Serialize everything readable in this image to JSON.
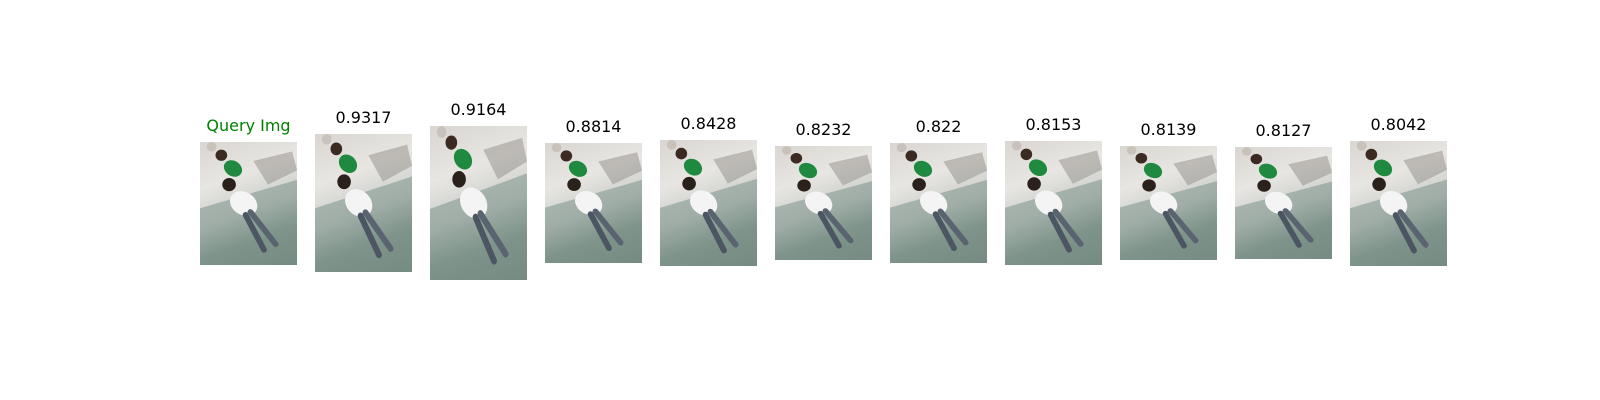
{
  "gallery": {
    "query_label": "Query Img",
    "query_color": "#008000",
    "results": [
      {
        "score": "0.9317"
      },
      {
        "score": "0.9164"
      },
      {
        "score": "0.8814"
      },
      {
        "score": "0.8428"
      },
      {
        "score": "0.8232"
      },
      {
        "score": "0.822"
      },
      {
        "score": "0.8153"
      },
      {
        "score": "0.8139"
      },
      {
        "score": "0.8127"
      },
      {
        "score": "0.8042"
      }
    ]
  }
}
